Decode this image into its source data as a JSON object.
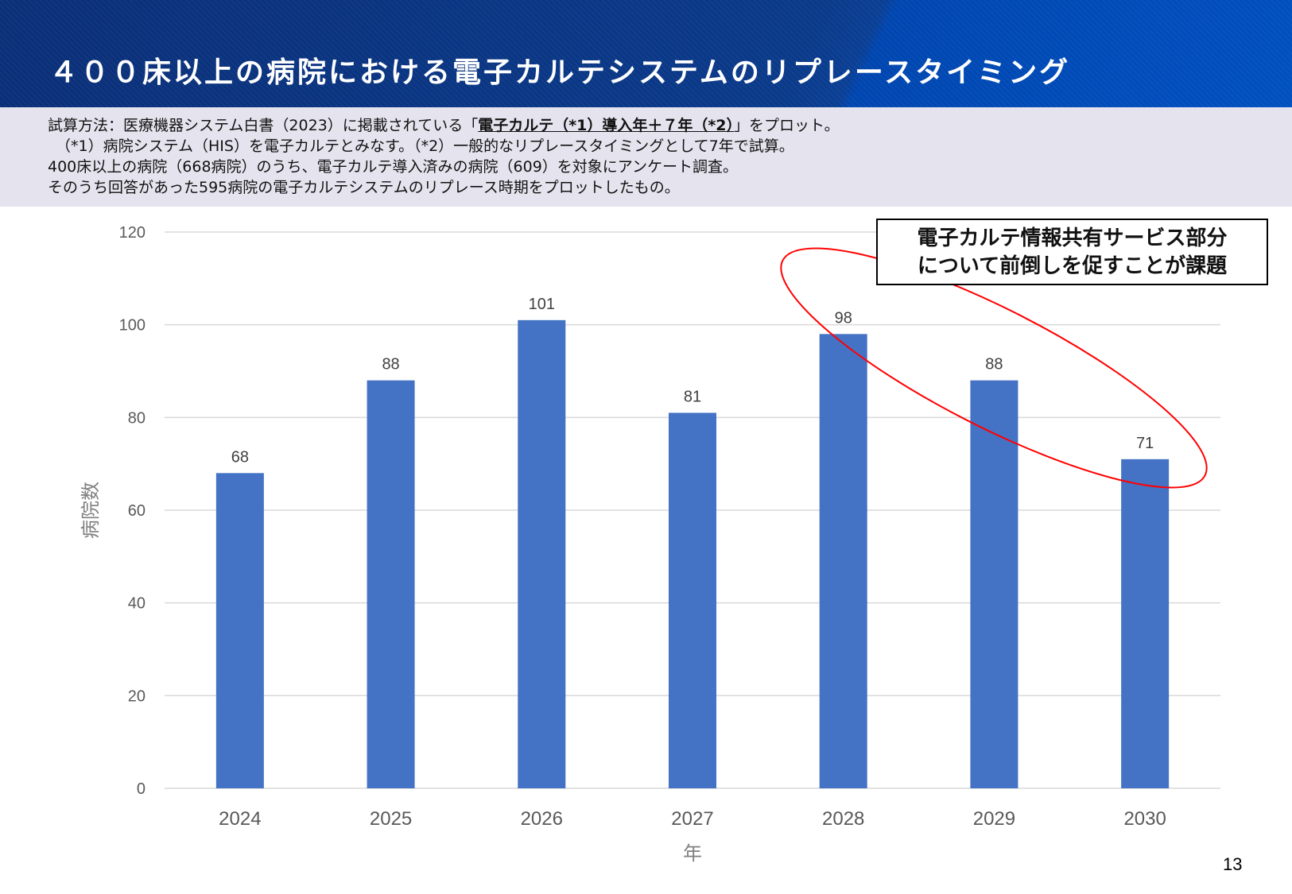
{
  "header": {
    "title": "４００床以上の病院における電子カルテシステムのリプレースタイミング"
  },
  "description": {
    "line1_pre": "試算方法：医療機器システム白書（2023）に掲載されている「",
    "line1_highlight": "電子カルテ（*1）導入年＋７年（*2）",
    "line1_post": "」をプロット。",
    "line2": "（*1）病院システム（HIS）を電子カルテとみなす。（*2）一般的なリプレースタイミングとして7年で試算。",
    "line3": "400床以上の病院（668病院）のうち、電子カルテ導入済みの病院（609）を対象にアンケート調査。",
    "line4": "そのうち回答があった595病院の電子カルテシステムのリプレース時期をプロットしたもの。"
  },
  "annotation": {
    "line1": "電子カルテ情報共有サービス部分",
    "line2": "について前倒しを促すことが課題",
    "highlight_color": "#ff0000"
  },
  "page_number": "13",
  "chart_data": {
    "type": "bar",
    "categories": [
      "2024",
      "2025",
      "2026",
      "2027",
      "2028",
      "2029",
      "2030"
    ],
    "values": [
      68,
      88,
      101,
      81,
      98,
      88,
      71
    ],
    "data_labels": [
      "68",
      "88",
      "101",
      "81",
      "98",
      "88",
      "71"
    ],
    "xlabel": "年",
    "ylabel": "病院数",
    "ylim": [
      0,
      120
    ],
    "yticks": [
      "0",
      "20",
      "40",
      "60",
      "80",
      "100",
      "120"
    ],
    "grid": true,
    "bar_color": "#4472c4",
    "highlighted_categories": [
      "2028",
      "2029",
      "2030"
    ]
  }
}
